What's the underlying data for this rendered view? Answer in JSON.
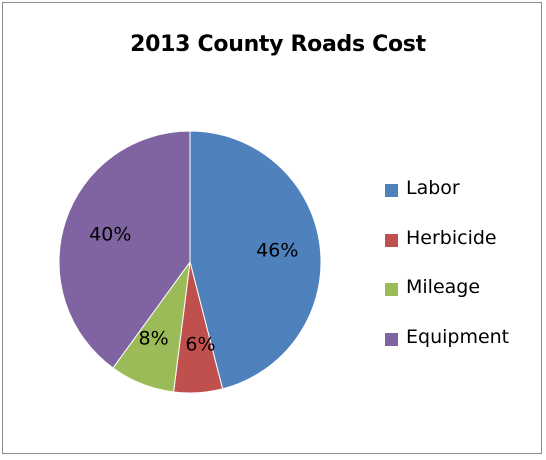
{
  "chart_data": {
    "type": "pie",
    "title": "2013 County Roads Cost",
    "categories": [
      "Labor",
      "Herbicide",
      "Mileage",
      "Equipment"
    ],
    "values": [
      46,
      6,
      8,
      40
    ],
    "labels": [
      "46%",
      "6%",
      "8%",
      "40%"
    ],
    "colors": [
      "#4f81bd",
      "#c0504d",
      "#9bbb59",
      "#8064a2"
    ],
    "legend_position": "right",
    "start_angle": "12 o'clock",
    "direction": "clockwise"
  }
}
